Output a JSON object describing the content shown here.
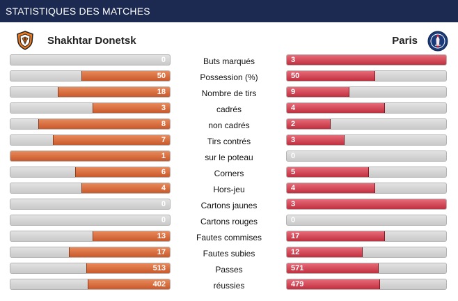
{
  "header": {
    "title": "STATISTIQUES DES MATCHES"
  },
  "teams": {
    "home": {
      "name": "Shakhtar Donetsk",
      "logo": "shakhtar-crest-icon",
      "color": "#d2652f"
    },
    "away": {
      "name": "Paris",
      "logo": "psg-crest-icon",
      "color": "#c73645"
    }
  },
  "stats": [
    {
      "label": "Buts marqués",
      "home": "0",
      "away": "3",
      "home_frac": 0,
      "away_frac": 1
    },
    {
      "label": "Possession (%)",
      "home": "50",
      "away": "50",
      "home_frac": 0.55,
      "away_frac": 0.55
    },
    {
      "label": "Nombre de tirs",
      "home": "18",
      "away": "9",
      "home_frac": 0.7,
      "away_frac": 0.39
    },
    {
      "label": "cadrés",
      "home": "3",
      "away": "4",
      "home_frac": 0.48,
      "away_frac": 0.61
    },
    {
      "label": "non cadrés",
      "home": "8",
      "away": "2",
      "home_frac": 0.82,
      "away_frac": 0.27
    },
    {
      "label": "Tirs contrés",
      "home": "7",
      "away": "3",
      "home_frac": 0.73,
      "away_frac": 0.36
    },
    {
      "label": "sur le poteau",
      "home": "1",
      "away": "0",
      "home_frac": 1,
      "away_frac": 0
    },
    {
      "label": "Corners",
      "home": "6",
      "away": "5",
      "home_frac": 0.59,
      "away_frac": 0.51
    },
    {
      "label": "Hors-jeu",
      "home": "4",
      "away": "4",
      "home_frac": 0.55,
      "away_frac": 0.55
    },
    {
      "label": "Cartons jaunes",
      "home": "0",
      "away": "3",
      "home_frac": 0,
      "away_frac": 1
    },
    {
      "label": "Cartons rouges",
      "home": "0",
      "away": "0",
      "home_frac": 0,
      "away_frac": 0
    },
    {
      "label": "Fautes commises",
      "home": "13",
      "away": "17",
      "home_frac": 0.48,
      "away_frac": 0.61
    },
    {
      "label": "Fautes subies",
      "home": "17",
      "away": "12",
      "home_frac": 0.63,
      "away_frac": 0.47
    },
    {
      "label": "Passes",
      "home": "513",
      "away": "571",
      "home_frac": 0.52,
      "away_frac": 0.57
    },
    {
      "label": "réussies",
      "home": "402",
      "away": "479",
      "home_frac": 0.51,
      "away_frac": 0.58
    }
  ]
}
